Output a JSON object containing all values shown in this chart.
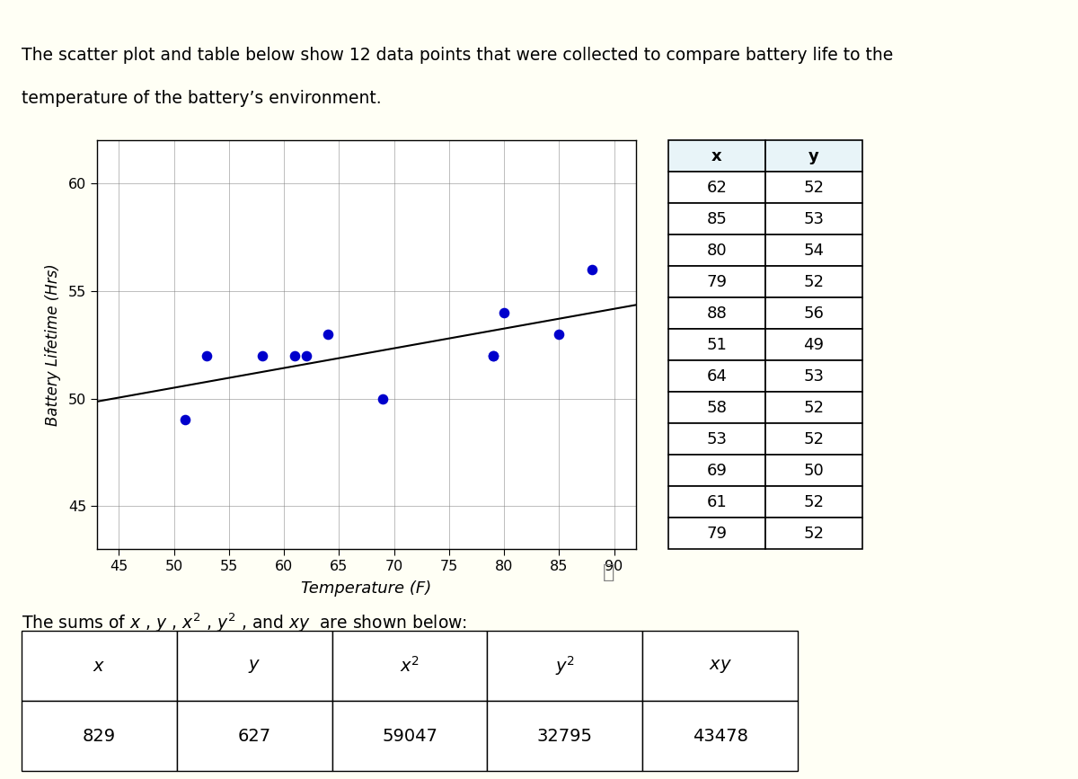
{
  "intro_text_line1": "The scatter plot and table below show 12 data points that were collected to compare battery life to the",
  "intro_text_line2": "temperature of the battery’s environment.",
  "scatter_x": [
    62,
    85,
    80,
    79,
    88,
    51,
    64,
    58,
    53,
    69,
    61,
    79
  ],
  "scatter_y": [
    52,
    53,
    54,
    52,
    56,
    49,
    53,
    52,
    52,
    50,
    52,
    52
  ],
  "x_label": "Temperature (F)",
  "y_label": "Battery Lifetime (Hrs)",
  "x_lim": [
    43,
    92
  ],
  "y_lim": [
    43,
    62
  ],
  "x_ticks": [
    45,
    50,
    55,
    60,
    65,
    70,
    75,
    80,
    85,
    90
  ],
  "y_ticks": [
    45,
    50,
    55,
    60
  ],
  "dot_color": "#0000CC",
  "line_color": "#000000",
  "bg_color": "#FFFFF5",
  "header_bar_color": "#E8F4F8",
  "table1_headers": [
    "x",
    "y"
  ],
  "table1_data": [
    [
      62,
      52
    ],
    [
      85,
      53
    ],
    [
      80,
      54
    ],
    [
      79,
      52
    ],
    [
      88,
      56
    ],
    [
      51,
      49
    ],
    [
      64,
      53
    ],
    [
      58,
      52
    ],
    [
      53,
      52
    ],
    [
      69,
      50
    ],
    [
      61,
      52
    ],
    [
      79,
      52
    ]
  ],
  "table2_headers_math": [
    "$x$",
    "$y$",
    "$x^2$",
    "$y^2$",
    "$xy$"
  ],
  "table2_values": [
    "829",
    "627",
    "59047",
    "32795",
    "43478"
  ],
  "sums_text": "The sums of $x$ , $y$ , $x^2$ , $y^2$ , and $xy$  are shown below:"
}
